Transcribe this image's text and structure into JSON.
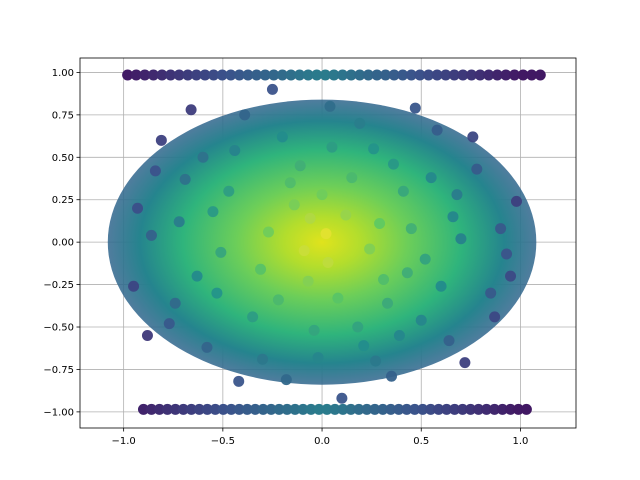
{
  "chart_data": {
    "type": "scatter",
    "title": "",
    "xlabel": "",
    "ylabel": "",
    "xlim": [
      -1.22,
      1.28
    ],
    "ylim": [
      -1.095,
      1.085
    ],
    "grid": true,
    "legend": "none",
    "colormap": [
      "#440154",
      "#3b528b",
      "#21918c",
      "#5ec962",
      "#fde725"
    ],
    "xticks": [
      {
        "value": -1.0,
        "label": "−1.0"
      },
      {
        "value": -0.5,
        "label": "−0.5"
      },
      {
        "value": 0.0,
        "label": "0.0"
      },
      {
        "value": 0.5,
        "label": "0.5"
      },
      {
        "value": 1.0,
        "label": "1.0"
      }
    ],
    "yticks": [
      {
        "value": 1.0,
        "label": "1.00"
      },
      {
        "value": 0.75,
        "label": "0.75"
      },
      {
        "value": 0.5,
        "label": "0.50"
      },
      {
        "value": 0.25,
        "label": "0.25"
      },
      {
        "value": 0.0,
        "label": "0.00"
      },
      {
        "value": -0.25,
        "label": "−0.25"
      },
      {
        "value": -0.5,
        "label": "−0.50"
      },
      {
        "value": -0.75,
        "label": "−0.75"
      },
      {
        "value": -1.0,
        "label": "−1.00"
      }
    ],
    "bands": [
      {
        "y": 0.985,
        "x0": -0.98,
        "x1": 1.1
      },
      {
        "y": -0.985,
        "x0": -0.9,
        "x1": 1.03
      }
    ],
    "points": [
      [
        -0.14,
        0.22
      ],
      [
        0.26,
        0.55
      ],
      [
        0.31,
        -0.22
      ],
      [
        -0.77,
        -0.48
      ],
      [
        0.21,
        -0.61
      ],
      [
        0.5,
        -0.46
      ],
      [
        -0.55,
        0.18
      ],
      [
        0.04,
        0.8
      ],
      [
        0.66,
        0.15
      ],
      [
        -0.3,
        -0.69
      ],
      [
        -0.86,
        0.04
      ],
      [
        0.87,
        -0.44
      ],
      [
        -0.07,
        -0.23
      ],
      [
        0.41,
        0.3
      ],
      [
        -0.44,
        0.54
      ],
      [
        0.1,
        -0.92
      ],
      [
        -0.63,
        -0.2
      ],
      [
        0.78,
        0.43
      ],
      [
        -0.22,
        -0.34
      ],
      [
        0.58,
        0.66
      ],
      [
        -0.95,
        -0.26
      ],
      [
        0.02,
        0.05
      ],
      [
        0.35,
        -0.79
      ],
      [
        -0.39,
        0.75
      ],
      [
        0.93,
        -0.07
      ],
      [
        -0.69,
        0.37
      ],
      [
        0.15,
        0.38
      ],
      [
        -0.18,
        -0.81
      ],
      [
        0.72,
        -0.71
      ],
      [
        -0.51,
        -0.06
      ],
      [
        0.29,
        0.11
      ],
      [
        -0.04,
        -0.52
      ],
      [
        0.47,
        0.79
      ],
      [
        -0.81,
        0.6
      ],
      [
        0.6,
        -0.26
      ],
      [
        -0.27,
        0.06
      ],
      [
        0.08,
        -0.33
      ],
      [
        0.98,
        0.24
      ],
      [
        -0.58,
        -0.62
      ],
      [
        0.19,
        0.7
      ],
      [
        -0.11,
        0.45
      ],
      [
        0.39,
        -0.55
      ],
      [
        -0.93,
        0.2
      ],
      [
        0.7,
        0.02
      ],
      [
        -0.35,
        -0.44
      ],
      [
        0.24,
        -0.04
      ],
      [
        -0.66,
        0.78
      ],
      [
        0.55,
        0.38
      ],
      [
        -0.02,
        -0.68
      ],
      [
        0.85,
        -0.3
      ],
      [
        -0.47,
        0.3
      ],
      [
        0.12,
        0.16
      ],
      [
        -0.74,
        -0.36
      ],
      [
        0.33,
        -0.36
      ],
      [
        -0.2,
        0.62
      ],
      [
        0.64,
        -0.58
      ],
      [
        -0.09,
        -0.05
      ],
      [
        0.45,
        0.08
      ],
      [
        -0.88,
        -0.55
      ],
      [
        0.05,
        0.56
      ],
      [
        -0.31,
        -0.16
      ],
      [
        0.76,
        0.62
      ],
      [
        -0.6,
        0.5
      ],
      [
        0.18,
        -0.5
      ],
      [
        0.95,
        -0.2
      ],
      [
        -0.42,
        -0.82
      ],
      [
        0.03,
        -0.12
      ],
      [
        0.52,
        -0.1
      ],
      [
        -0.16,
        0.35
      ],
      [
        0.36,
        0.46
      ],
      [
        -0.72,
        0.12
      ],
      [
        0.27,
        -0.7
      ],
      [
        -0.25,
        0.9
      ],
      [
        0.68,
        0.28
      ],
      [
        -0.53,
        -0.3
      ],
      [
        0.0,
        0.28
      ],
      [
        0.43,
        -0.18
      ],
      [
        -0.84,
        0.42
      ],
      [
        0.9,
        0.08
      ],
      [
        -0.06,
        0.14
      ]
    ]
  }
}
